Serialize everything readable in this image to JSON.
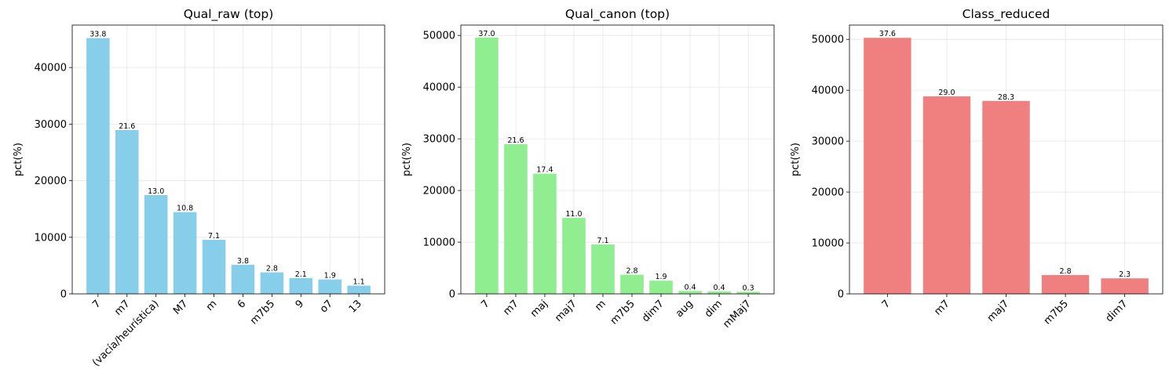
{
  "chart_data": [
    {
      "type": "bar",
      "title": "Qual_raw (top)",
      "xlabel": "",
      "ylabel": "pct(%)",
      "categories": [
        "7",
        "m7",
        "(vacía/heurística)",
        "M7",
        "m",
        "6",
        "m7b5",
        "9",
        "o7",
        "13"
      ],
      "values": [
        45200,
        28950,
        17450,
        14450,
        9550,
        5150,
        3800,
        2800,
        2550,
        1450
      ],
      "bar_labels": [
        "33.8",
        "21.6",
        "13.0",
        "10.8",
        "7.1",
        "3.8",
        "2.8",
        "2.1",
        "1.9",
        "1.1"
      ],
      "ylim": [
        0,
        47500
      ],
      "yticks": [
        0,
        10000,
        20000,
        30000,
        40000
      ],
      "color": "#87ceeb",
      "grid": true
    },
    {
      "type": "bar",
      "title": "Qual_canon (top)",
      "xlabel": "",
      "ylabel": "pct(%)",
      "categories": [
        "7",
        "m7",
        "maj",
        "maj7",
        "m",
        "m7b5",
        "dim7",
        "aug",
        "dim",
        "mMaj7"
      ],
      "values": [
        49600,
        28950,
        23250,
        14700,
        9550,
        3700,
        2550,
        560,
        480,
        400
      ],
      "bar_labels": [
        "37.0",
        "21.6",
        "17.4",
        "11.0",
        "7.1",
        "2.8",
        "1.9",
        "0.4",
        "0.4",
        "0.3"
      ],
      "ylim": [
        0,
        52000
      ],
      "yticks": [
        0,
        10000,
        20000,
        30000,
        40000,
        50000
      ],
      "color": "#90ee90",
      "grid": true
    },
    {
      "type": "bar",
      "title": "Class_reduced",
      "xlabel": "",
      "ylabel": "pct(%)",
      "categories": [
        "7",
        "m7",
        "maj7",
        "m7b5",
        "dim7"
      ],
      "values": [
        50300,
        38800,
        37900,
        3700,
        3050
      ],
      "bar_labels": [
        "37.6",
        "29.0",
        "28.3",
        "2.8",
        "2.3"
      ],
      "ylim": [
        0,
        52800
      ],
      "yticks": [
        0,
        10000,
        20000,
        30000,
        40000,
        50000
      ],
      "color": "#f08080",
      "grid": true
    }
  ]
}
